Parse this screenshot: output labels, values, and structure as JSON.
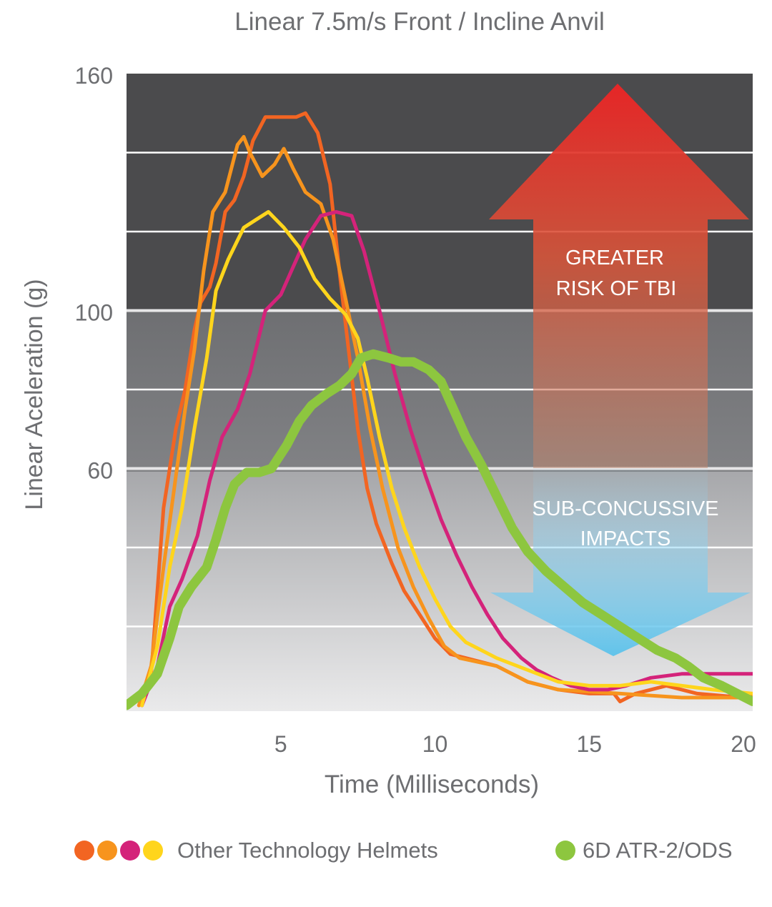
{
  "chart_data": {
    "type": "line",
    "title": "Linear 7.5m/s Front / Incline Anvil",
    "xlabel": "Time (Milliseconds)",
    "ylabel": "Linear Aceleration (g)",
    "xlim": [
      0,
      20.3
    ],
    "ylim": [
      0,
      160
    ],
    "x_ticks": [
      5,
      10,
      15,
      20
    ],
    "y_ticks": [
      160,
      100,
      60
    ],
    "gridlines_y": [
      140,
      120,
      80,
      40,
      20
    ],
    "zones": [
      {
        "from": 100,
        "to": 160,
        "color": "#4b4b4d"
      },
      {
        "from": 60,
        "to": 100,
        "color": "#76777a"
      },
      {
        "from": 0,
        "to": 60,
        "color": "#d3d3d5"
      }
    ],
    "annotations": {
      "greater_risk": [
        "GREATER",
        "RISK OF TBI"
      ],
      "sub_concussive": [
        "SUB-CONCUSSIVE",
        "IMPACTS"
      ]
    },
    "series": [
      {
        "group": "Other Technology Helmets",
        "color": "#f26522",
        "width": 5,
        "points": [
          [
            0.5,
            0
          ],
          [
            0.8,
            8
          ],
          [
            1.2,
            50
          ],
          [
            1.6,
            70
          ],
          [
            1.9,
            80
          ],
          [
            2.2,
            95
          ],
          [
            2.4,
            102
          ],
          [
            2.7,
            106
          ],
          [
            2.9,
            112
          ],
          [
            3.2,
            125
          ],
          [
            3.5,
            128
          ],
          [
            3.8,
            134
          ],
          [
            4.1,
            143
          ],
          [
            4.5,
            149
          ],
          [
            5.0,
            149
          ],
          [
            5.5,
            149
          ],
          [
            5.8,
            150
          ],
          [
            6.2,
            145
          ],
          [
            6.6,
            132
          ],
          [
            6.9,
            110
          ],
          [
            7.2,
            90
          ],
          [
            7.5,
            70
          ],
          [
            7.8,
            55
          ],
          [
            8.1,
            46
          ],
          [
            8.6,
            36
          ],
          [
            9.0,
            29
          ],
          [
            9.5,
            23
          ],
          [
            10.0,
            17
          ],
          [
            10.5,
            13
          ],
          [
            11.0,
            12
          ],
          [
            12.0,
            10
          ],
          [
            13.0,
            6
          ],
          [
            14.0,
            4
          ],
          [
            15.0,
            3
          ],
          [
            15.8,
            3
          ],
          [
            16.0,
            1
          ],
          [
            16.5,
            3
          ],
          [
            17.5,
            5
          ],
          [
            18.5,
            3
          ],
          [
            20.0,
            2
          ],
          [
            20.3,
            3
          ]
        ]
      },
      {
        "group": "Other Technology Helmets",
        "color": "#f7941d",
        "width": 5,
        "points": [
          [
            0.4,
            0
          ],
          [
            0.8,
            10
          ],
          [
            1.2,
            35
          ],
          [
            1.6,
            58
          ],
          [
            1.9,
            75
          ],
          [
            2.2,
            90
          ],
          [
            2.5,
            110
          ],
          [
            2.8,
            125
          ],
          [
            3.2,
            130
          ],
          [
            3.6,
            142
          ],
          [
            3.8,
            144
          ],
          [
            4.0,
            140
          ],
          [
            4.4,
            134
          ],
          [
            4.8,
            137
          ],
          [
            5.1,
            141
          ],
          [
            5.4,
            136
          ],
          [
            5.8,
            130
          ],
          [
            6.3,
            127
          ],
          [
            6.7,
            118
          ],
          [
            7.1,
            103
          ],
          [
            7.5,
            88
          ],
          [
            7.9,
            70
          ],
          [
            8.3,
            55
          ],
          [
            8.8,
            40
          ],
          [
            9.3,
            30
          ],
          [
            9.8,
            22
          ],
          [
            10.3,
            15
          ],
          [
            10.8,
            12
          ],
          [
            12.0,
            10
          ],
          [
            13.0,
            6
          ],
          [
            14.0,
            4
          ],
          [
            16.0,
            3
          ],
          [
            18.0,
            2
          ],
          [
            20.3,
            2
          ]
        ]
      },
      {
        "group": "Other Technology Helmets",
        "color": "#d4237a",
        "width": 5,
        "points": [
          [
            0.5,
            0
          ],
          [
            1.0,
            10
          ],
          [
            1.4,
            25
          ],
          [
            1.8,
            32
          ],
          [
            2.3,
            43
          ],
          [
            2.7,
            57
          ],
          [
            3.1,
            68
          ],
          [
            3.6,
            75
          ],
          [
            4.0,
            84
          ],
          [
            4.5,
            100
          ],
          [
            5.0,
            104
          ],
          [
            5.4,
            111
          ],
          [
            5.8,
            118
          ],
          [
            6.3,
            124
          ],
          [
            6.8,
            125
          ],
          [
            7.3,
            124
          ],
          [
            7.7,
            115
          ],
          [
            8.2,
            100
          ],
          [
            8.7,
            84
          ],
          [
            9.2,
            70
          ],
          [
            9.7,
            58
          ],
          [
            10.2,
            47
          ],
          [
            10.7,
            38
          ],
          [
            11.2,
            30
          ],
          [
            11.7,
            23
          ],
          [
            12.2,
            17
          ],
          [
            12.8,
            12
          ],
          [
            13.3,
            9
          ],
          [
            13.8,
            7
          ],
          [
            14.4,
            5
          ],
          [
            15.0,
            4
          ],
          [
            15.6,
            4
          ],
          [
            16.2,
            5
          ],
          [
            17.0,
            7
          ],
          [
            18.0,
            8
          ],
          [
            19.0,
            8
          ],
          [
            20.3,
            8
          ]
        ]
      },
      {
        "group": "Other Technology Helmets",
        "color": "#ffd51c",
        "width": 5,
        "points": [
          [
            0.5,
            0
          ],
          [
            1.0,
            15
          ],
          [
            1.4,
            35
          ],
          [
            1.8,
            50
          ],
          [
            2.2,
            70
          ],
          [
            2.6,
            88
          ],
          [
            2.9,
            105
          ],
          [
            3.3,
            113
          ],
          [
            3.8,
            121
          ],
          [
            4.2,
            123
          ],
          [
            4.6,
            125
          ],
          [
            5.1,
            121
          ],
          [
            5.6,
            116
          ],
          [
            6.1,
            108
          ],
          [
            6.6,
            103
          ],
          [
            7.1,
            99
          ],
          [
            7.5,
            93
          ],
          [
            7.8,
            83
          ],
          [
            8.2,
            68
          ],
          [
            8.6,
            55
          ],
          [
            9.0,
            45
          ],
          [
            9.5,
            35
          ],
          [
            10.0,
            27
          ],
          [
            10.5,
            20
          ],
          [
            11.0,
            16
          ],
          [
            11.5,
            14
          ],
          [
            12.0,
            12
          ],
          [
            13.0,
            9
          ],
          [
            14.0,
            6
          ],
          [
            15.0,
            5
          ],
          [
            16.0,
            5
          ],
          [
            17.0,
            6
          ],
          [
            18.0,
            5
          ],
          [
            19.0,
            4
          ],
          [
            20.3,
            3
          ]
        ]
      },
      {
        "group": "6D ATR-2/ODS",
        "color": "#8dc63f",
        "width": 13,
        "points": [
          [
            0,
            0
          ],
          [
            0.5,
            3
          ],
          [
            1.0,
            8
          ],
          [
            1.4,
            17
          ],
          [
            1.7,
            25
          ],
          [
            2.1,
            30
          ],
          [
            2.6,
            35
          ],
          [
            2.9,
            42
          ],
          [
            3.2,
            50
          ],
          [
            3.5,
            56
          ],
          [
            3.9,
            59
          ],
          [
            4.3,
            59
          ],
          [
            4.7,
            60
          ],
          [
            5.2,
            66
          ],
          [
            5.6,
            72
          ],
          [
            6.0,
            76
          ],
          [
            6.5,
            79
          ],
          [
            6.9,
            81
          ],
          [
            7.3,
            84
          ],
          [
            7.6,
            88
          ],
          [
            8.0,
            89
          ],
          [
            8.5,
            88
          ],
          [
            8.9,
            87
          ],
          [
            9.3,
            87
          ],
          [
            9.8,
            85
          ],
          [
            10.2,
            82
          ],
          [
            10.6,
            75
          ],
          [
            11.0,
            68
          ],
          [
            11.5,
            61
          ],
          [
            12.0,
            53
          ],
          [
            12.5,
            45
          ],
          [
            13.0,
            39
          ],
          [
            13.6,
            34
          ],
          [
            14.2,
            30
          ],
          [
            14.8,
            26
          ],
          [
            15.4,
            23
          ],
          [
            16.0,
            20
          ],
          [
            16.6,
            17
          ],
          [
            17.2,
            14
          ],
          [
            17.8,
            12
          ],
          [
            18.2,
            10
          ],
          [
            18.7,
            7
          ],
          [
            19.3,
            5
          ],
          [
            19.8,
            3
          ],
          [
            20.3,
            1
          ]
        ]
      }
    ]
  },
  "legend": {
    "other_label": "Other Technology Helmets",
    "other_colors": [
      "#f26522",
      "#f7941d",
      "#d4237a",
      "#ffd51c"
    ],
    "ours_label": "6D ATR-2/ODS",
    "ours_color": "#8dc63f"
  }
}
